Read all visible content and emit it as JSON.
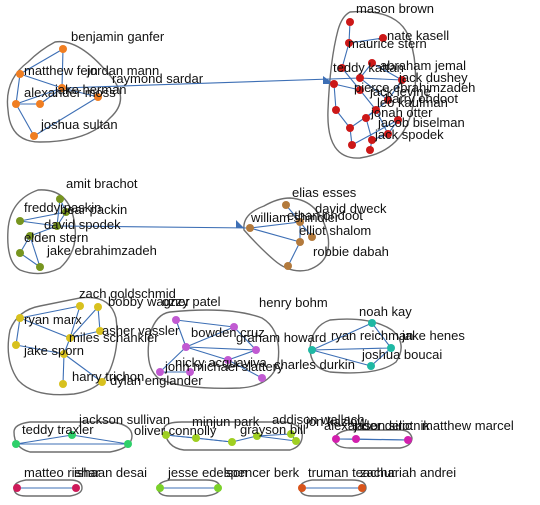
{
  "colors": {
    "edge": "#3d6fb5",
    "hull_stroke": "#6e6e6e",
    "orange": "#f07e22",
    "red": "#cc1818",
    "olive": "#77951f",
    "brown": "#b37a3c",
    "yellow": "#d8c11e",
    "purple": "#c15ad2",
    "teal": "#1fb8a4",
    "green": "#2ed06a",
    "lime": "#9fcf22",
    "magenta": "#d220ad",
    "crimson": "#ce1a59",
    "leaf": "#7bd12a",
    "rust": "#d8541b"
  },
  "clusters": [
    {
      "name": "cluster-orange",
      "color": "orange",
      "labels": [
        "benjamin ganfer",
        "matthew fein",
        "jordan mann",
        "raymond sardar",
        "alexander moss",
        "jake herman",
        "joshua sultan"
      ]
    },
    {
      "name": "cluster-red",
      "color": "red",
      "labels": [
        "mason brown",
        "nate kasell",
        "maurice stern",
        "abraham jemal",
        "teddy kattan",
        "pierce ebrahimzadeh",
        "jack levine",
        "jack dushey",
        "harry ohdoot",
        "leo kaufman",
        "jonah otter",
        "jacob biselman",
        "jack spodek"
      ]
    },
    {
      "name": "cluster-olive",
      "color": "olive",
      "labels": [
        "amit brachot",
        "freddy paskin",
        "bear packin",
        "david spodek",
        "elden stern",
        "jake ebrahimzadeh"
      ]
    },
    {
      "name": "cluster-brown",
      "color": "brown",
      "labels": [
        "elias esses",
        "david dweck",
        "william shindler",
        "ethan ohdoot",
        "elliot shalom",
        "robbie dabah"
      ]
    },
    {
      "name": "cluster-yellow",
      "color": "yellow",
      "labels": [
        "zach goldschmid",
        "bobby wagner",
        "ozzy patel",
        "ryan marx",
        "asher vassler",
        "miles schankler",
        "jake sporn",
        "harry trichon",
        "dylan englander"
      ]
    },
    {
      "name": "cluster-purple",
      "color": "purple",
      "labels": [
        "henry bohm",
        "bowden cruz",
        "graham howard",
        "nicky acquaviva",
        "charles durkin",
        "john michael slattery"
      ]
    },
    {
      "name": "cluster-teal",
      "color": "teal",
      "labels": [
        "noah kay",
        "ryan reichman",
        "jake henes",
        "joshua boucai"
      ]
    },
    {
      "name": "cluster-green",
      "color": "green",
      "labels": [
        "jackson sullivan",
        "teddy traxler"
      ]
    },
    {
      "name": "cluster-lime",
      "color": "lime",
      "labels": [
        "minjun park",
        "oliver connolly",
        "addison wallach",
        "grayson bill",
        "jon kazlow"
      ]
    },
    {
      "name": "cluster-magenta",
      "color": "magenta",
      "labels": [
        "alexander delic",
        "jason sirotnik",
        "matthew marcel"
      ]
    },
    {
      "name": "cluster-crimson",
      "color": "crimson",
      "labels": [
        "matteo rishar",
        "ishaan desai"
      ]
    },
    {
      "name": "cluster-leaf",
      "color": "leaf",
      "labels": [
        "jesse edelson",
        "spencer berk"
      ]
    },
    {
      "name": "cluster-rust",
      "color": "rust",
      "labels": [
        "truman teachur",
        "zachariah andrei"
      ]
    }
  ]
}
